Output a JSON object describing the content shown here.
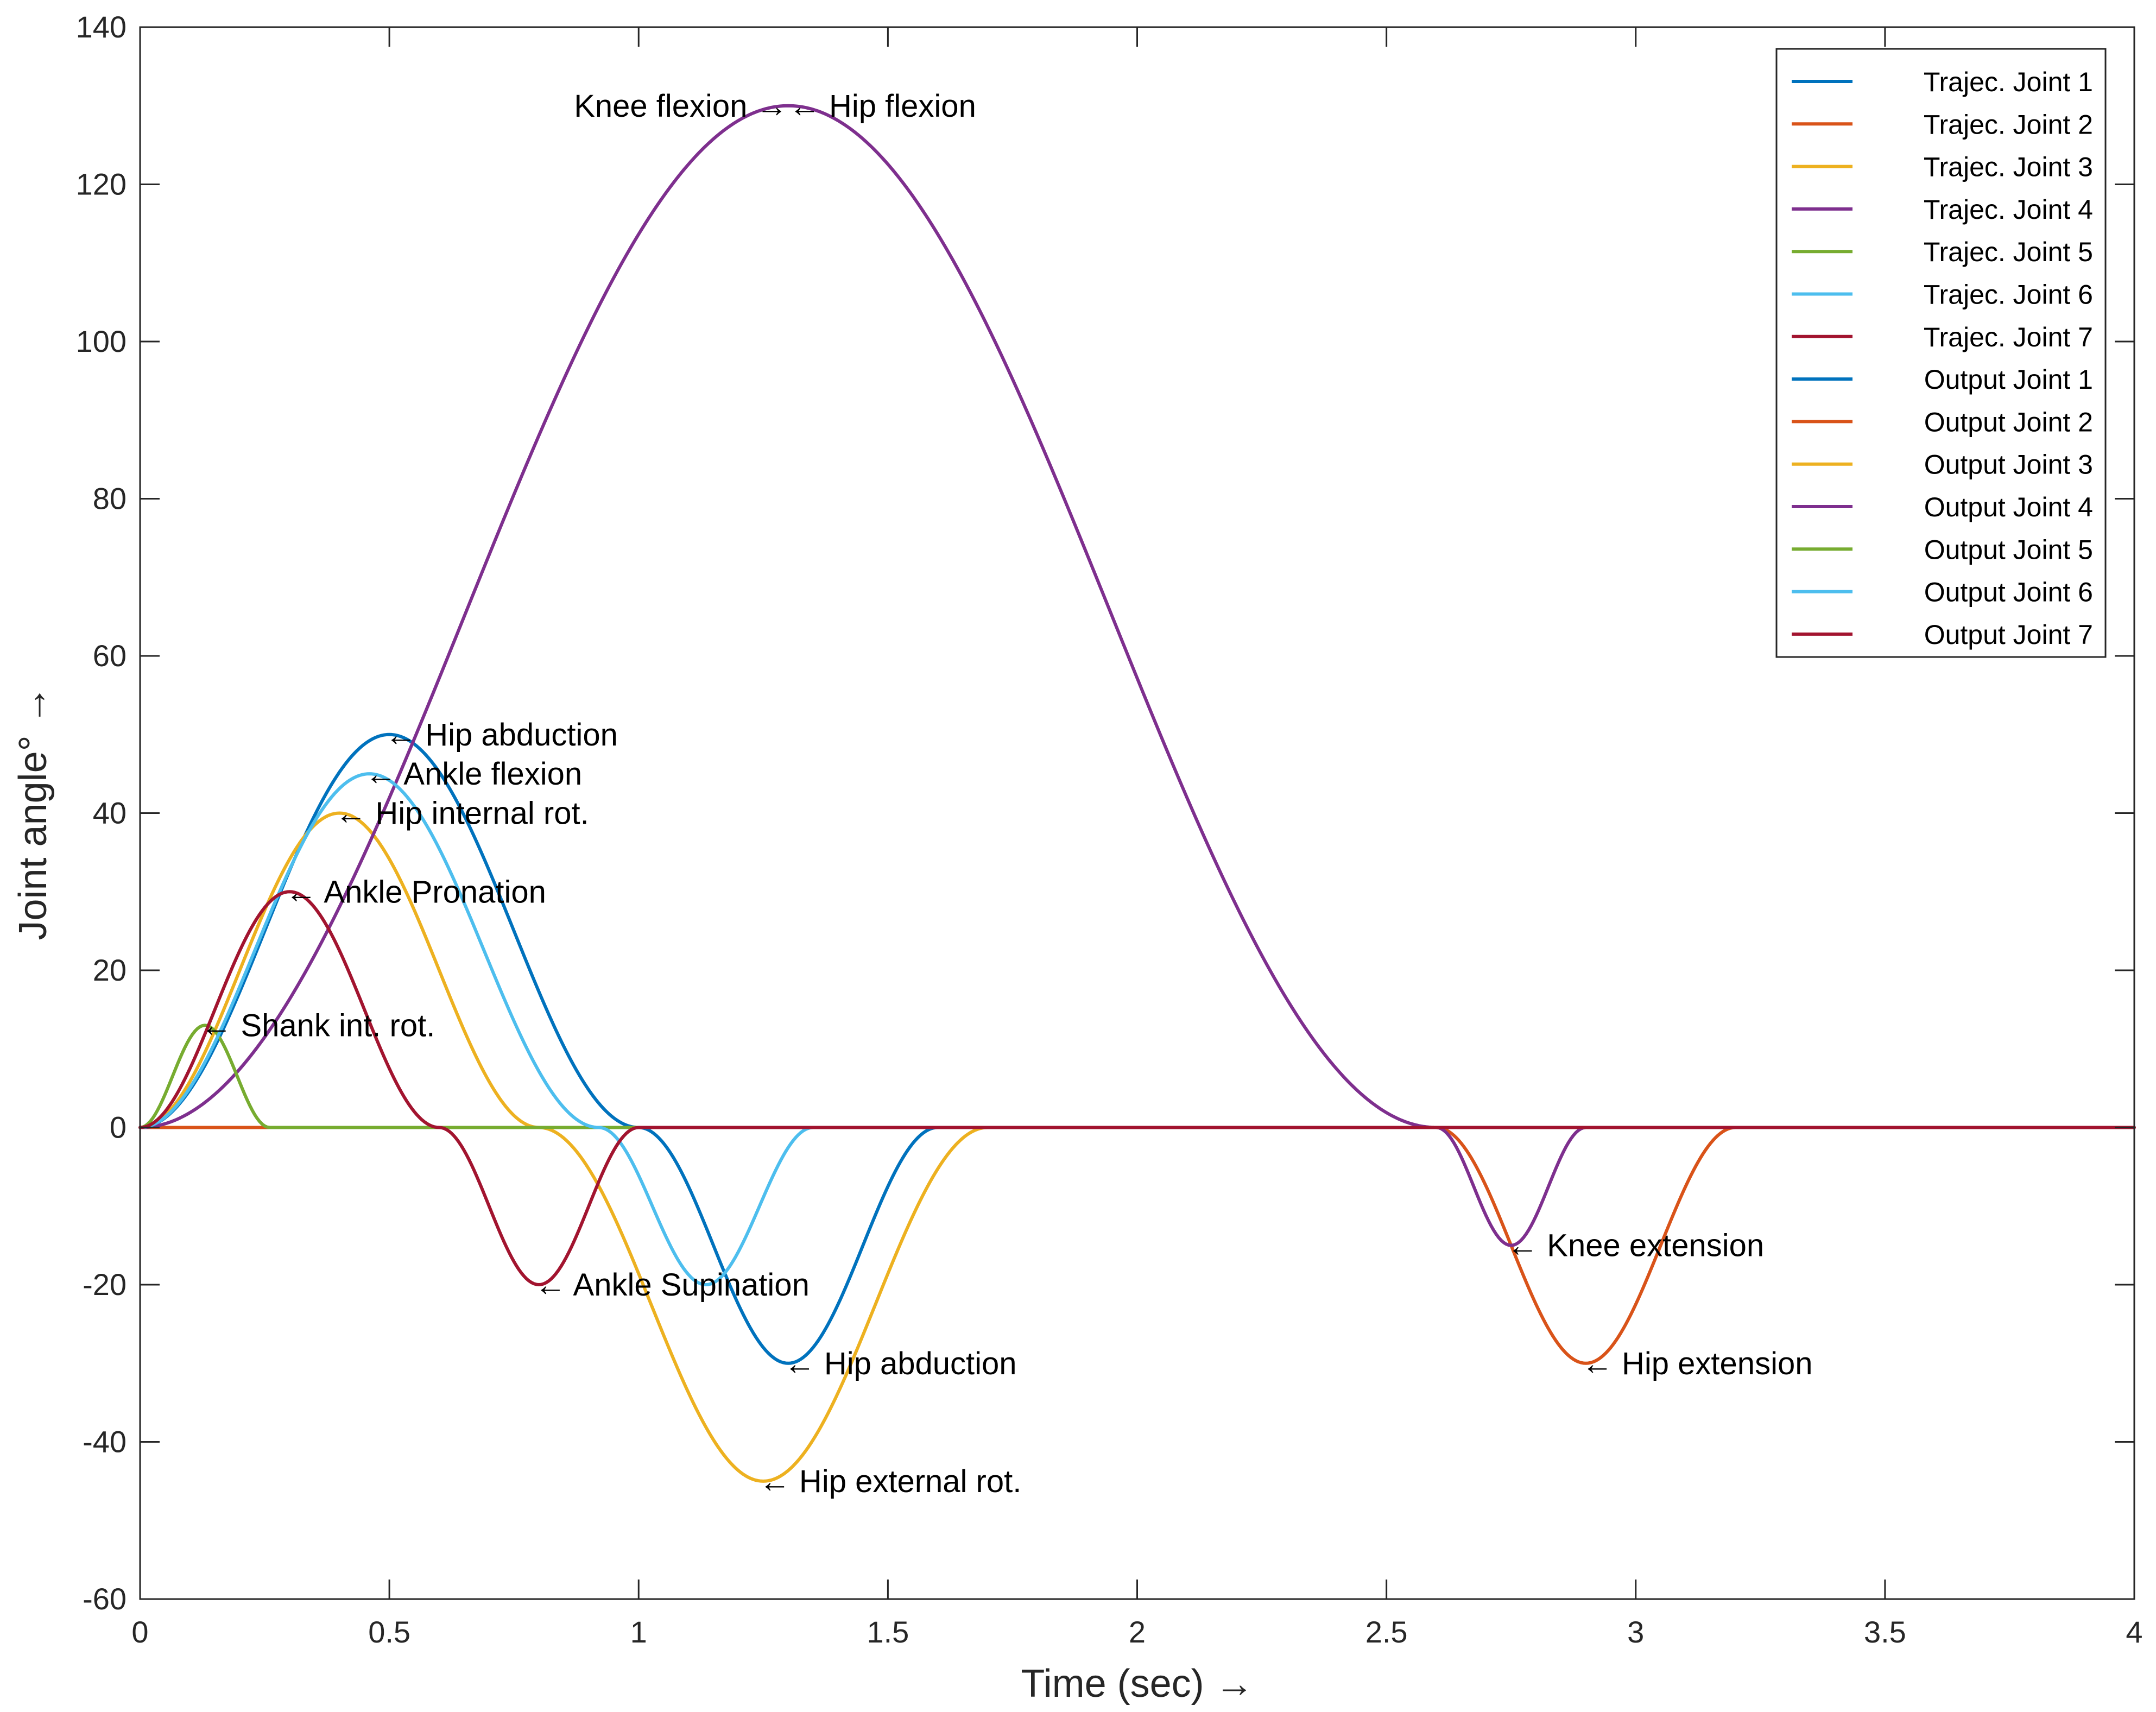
{
  "chart_data": {
    "type": "line",
    "title": "",
    "xlabel": "Time (sec) →",
    "ylabel": "Joint angle° →",
    "xlim": [
      0,
      4
    ],
    "ylim": [
      -60,
      140
    ],
    "xticks": [
      0,
      0.5,
      1,
      1.5,
      2,
      2.5,
      3,
      3.5,
      4
    ],
    "xtick_labels": [
      "0",
      "0.5",
      "1",
      "1.5",
      "2",
      "2.5",
      "3",
      "3.5",
      "4"
    ],
    "yticks": [
      -60,
      -40,
      -20,
      0,
      20,
      40,
      60,
      80,
      100,
      120,
      140
    ],
    "ytick_labels": [
      "-60",
      "-40",
      "-20",
      "0",
      "20",
      "40",
      "60",
      "80",
      "100",
      "120",
      "140"
    ],
    "grid": false,
    "legend_position": "top-right",
    "series": [
      {
        "name": "Trajec. Joint 1",
        "color": "#0072BD",
        "width": 5,
        "pulses": [
          {
            "t0": 0,
            "t1": 1,
            "amp": 50
          },
          {
            "t0": 1,
            "t1": 1.6,
            "amp": -30
          }
        ]
      },
      {
        "name": "Trajec. Joint 2",
        "color": "#D95319",
        "width": 5,
        "pulses": [
          {
            "t0": 2.6,
            "t1": 3.2,
            "amp": -30
          }
        ]
      },
      {
        "name": "Trajec. Joint 3",
        "color": "#EDB120",
        "width": 5,
        "pulses": [
          {
            "t0": 0,
            "t1": 0.8,
            "amp": 40
          },
          {
            "t0": 0.8,
            "t1": 1.7,
            "amp": -45
          }
        ]
      },
      {
        "name": "Trajec. Joint 4",
        "color": "#7E2F8E",
        "width": 5,
        "pulses": [
          {
            "t0": 0,
            "t1": 2.6,
            "amp": 130
          },
          {
            "t0": 2.6,
            "t1": 2.9,
            "amp": -15
          }
        ]
      },
      {
        "name": "Trajec. Joint 5",
        "color": "#77AC30",
        "width": 5,
        "pulses": [
          {
            "t0": 0,
            "t1": 0.26,
            "amp": 13
          }
        ]
      },
      {
        "name": "Trajec. Joint 6",
        "color": "#4DBEEE",
        "width": 5,
        "pulses": [
          {
            "t0": 0,
            "t1": 0.92,
            "amp": 45
          },
          {
            "t0": 0.92,
            "t1": 1.35,
            "amp": -20
          }
        ]
      },
      {
        "name": "Trajec. Joint 7",
        "color": "#A2142F",
        "width": 5,
        "pulses": [
          {
            "t0": 0,
            "t1": 0.6,
            "amp": 30
          },
          {
            "t0": 0.6,
            "t1": 1.0,
            "amp": -20
          }
        ]
      },
      {
        "name": "Output Joint 1",
        "color": "#0072BD",
        "width": 6,
        "pulses": [
          {
            "t0": 0,
            "t1": 1,
            "amp": 50
          },
          {
            "t0": 1,
            "t1": 1.6,
            "amp": -30
          }
        ]
      },
      {
        "name": "Output Joint 2",
        "color": "#D95319",
        "width": 6,
        "pulses": [
          {
            "t0": 2.6,
            "t1": 3.2,
            "amp": -30
          }
        ]
      },
      {
        "name": "Output Joint 3",
        "color": "#EDB120",
        "width": 6,
        "pulses": [
          {
            "t0": 0,
            "t1": 0.8,
            "amp": 40
          },
          {
            "t0": 0.8,
            "t1": 1.7,
            "amp": -45
          }
        ]
      },
      {
        "name": "Output Joint 4",
        "color": "#7E2F8E",
        "width": 6,
        "pulses": [
          {
            "t0": 0,
            "t1": 2.6,
            "amp": 130
          },
          {
            "t0": 2.6,
            "t1": 2.9,
            "amp": -15
          }
        ]
      },
      {
        "name": "Output Joint 5",
        "color": "#77AC30",
        "width": 6,
        "pulses": [
          {
            "t0": 0,
            "t1": 0.26,
            "amp": 13
          }
        ]
      },
      {
        "name": "Output Joint 6",
        "color": "#4DBEEE",
        "width": 6,
        "pulses": [
          {
            "t0": 0,
            "t1": 0.92,
            "amp": 45
          },
          {
            "t0": 0.92,
            "t1": 1.35,
            "amp": -20
          }
        ]
      },
      {
        "name": "Output Joint 7",
        "color": "#A2142F",
        "width": 6,
        "pulses": [
          {
            "t0": 0,
            "t1": 0.6,
            "amp": 30
          },
          {
            "t0": 0.6,
            "t1": 1.0,
            "amp": -20
          }
        ]
      }
    ],
    "annotations": [
      {
        "text": "← Hip flexion",
        "x": 1.31,
        "y": 130,
        "align": "left"
      },
      {
        "text": "Knee flexion →",
        "x": 1.29,
        "y": 130,
        "align": "right"
      },
      {
        "text": "← Hip abduction",
        "x": 0.5,
        "y": 50,
        "align": "left"
      },
      {
        "text": "← Ankle flexion",
        "x": 0.46,
        "y": 45,
        "align": "left"
      },
      {
        "text": "← Hip internal rot.",
        "x": 0.4,
        "y": 40,
        "align": "left"
      },
      {
        "text": "← Ankle Pronation",
        "x": 0.3,
        "y": 30,
        "align": "left"
      },
      {
        "text": "← Shank int. rot.",
        "x": 0.13,
        "y": 13,
        "align": "left"
      },
      {
        "text": "← Ankle Supination",
        "x": 0.8,
        "y": -20,
        "align": "left"
      },
      {
        "text": "← Hip abduction",
        "x": 1.3,
        "y": -30,
        "align": "left"
      },
      {
        "text": "← Hip external rot.",
        "x": 1.25,
        "y": -45,
        "align": "left"
      },
      {
        "text": "← Knee extension",
        "x": 2.75,
        "y": -15,
        "align": "left"
      },
      {
        "text": "← Hip extension",
        "x": 2.9,
        "y": -30,
        "align": "left"
      }
    ]
  }
}
